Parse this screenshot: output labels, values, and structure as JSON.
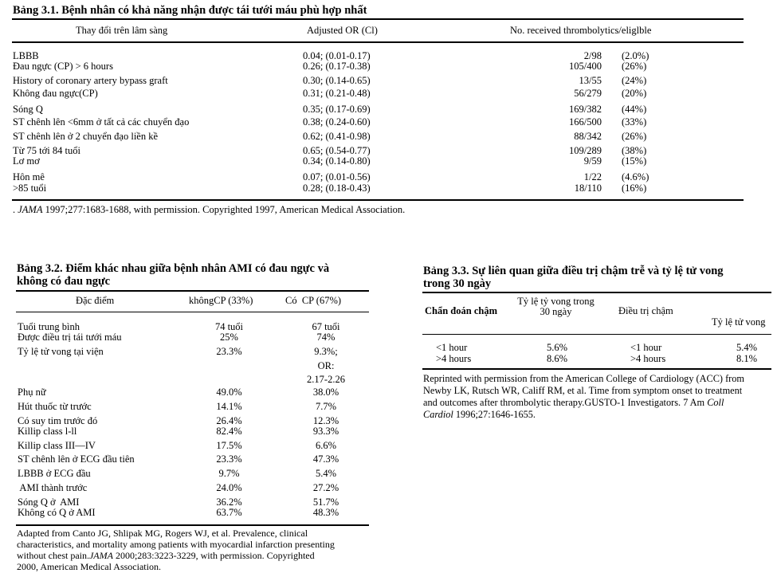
{
  "table1": {
    "title": "Bảng 3.1. Bệnh nhân có khả năng nhận được tái tưới máu phù hợp nhất",
    "headers": [
      "Thay đổi trên lâm sàng",
      "Adjusted OR (Cl)",
      "No. received thrombolytics/eliglble"
    ],
    "rows": [
      {
        "label": "LBBB",
        "or": "0.04; (0.01-0.17)",
        "ratio": "2/98",
        "pct": "(2.0%)"
      },
      {
        "label": "Đau ngực (CP) > 6 hours",
        "or": "0.26; (0.17-0.38)",
        "ratio": "105/400",
        "pct": "(26%)"
      },
      {
        "label": "History of coronary artery bypass graft",
        "or": "0.30; (0.14-0.65)",
        "ratio": "13/55",
        "pct": "(24%)"
      },
      {
        "label": "Không đau ngực(CP)",
        "or": "0.31; (0.21-0.48)",
        "ratio": "56/279",
        "pct": "(20%)"
      },
      {
        "label": "Sóng Q",
        "or": "0.35; (0.17-0.69)",
        "ratio": "169/382",
        "pct": "(44%)"
      },
      {
        "label": "ST chênh lên <6mm ở tất cả các chuyển đạo",
        "or": "0.38; (0.24-0.60)",
        "ratio": "166/500",
        "pct": "(33%)"
      },
      {
        "label": "ST chênh lên ở 2 chuyển đạo liền kề",
        "or": "0.62; (0.41-0.98)",
        "ratio": "88/342",
        "pct": "(26%)"
      },
      {
        "label": "Từ 75 tới 84 tuổi",
        "or": "0.65; (0.54-0.77)",
        "ratio": "109/289",
        "pct": "(38%)"
      },
      {
        "label": "Lơ mơ",
        "or": "0.34; (0.14-0.80)",
        "ratio": "9/59",
        "pct": "(15%)"
      },
      {
        "label": "Hôn mê",
        "or": "0.07; (0.01-0.56)",
        "ratio": "1/22",
        "pct": "(4.6%)"
      },
      {
        "label": ">85 tuổi",
        "or": "0.28; (0.18-0.43)",
        "ratio": "18/110",
        "pct": "(16%)"
      }
    ],
    "footnote_prefix": ". ",
    "footnote_journal": "JAMA",
    "footnote_rest": " 1997;277:1683-1688, with permission. Copyrighted 1997, American Medical Association."
  },
  "table2": {
    "title_line1": "Bảng 3.2. Điểm khác nhau giữa bệnh nhân AMI có đau ngực và",
    "title_line2": "không có đau ngực",
    "headers": [
      "Đặc điểm",
      "khôngCP (33%)",
      "Có  CP (67%)"
    ],
    "rows": [
      {
        "label": "Tuổi trung bình",
        "a": "74 tuổi",
        "b": "67 tuổi"
      },
      {
        "label": "Được điều trị tái tưới máu",
        "a": "25%",
        "b": "74%"
      },
      {
        "label": "Tỷ lệ tử vong tại viện",
        "a": "23.3%",
        "b": "9.3%;"
      },
      {
        "label": "",
        "a": "",
        "b": "OR:"
      },
      {
        "label": "",
        "a": "",
        "b": "2.17-2.26"
      },
      {
        "label": "Phụ nữ",
        "a": "49.0%",
        "b": "38.0%"
      },
      {
        "label": "Hút thuốc từ trước",
        "a": "14.1%",
        "b": "7.7%"
      },
      {
        "label": "Có suy tim trước đó",
        "a": "26.4%",
        "b": "12.3%"
      },
      {
        "label": "Killip class l-ll",
        "a": "82.4%",
        "b": "93.3%"
      },
      {
        "label": "Killip class III—IV",
        "a": "17.5%",
        "b": "6.6%"
      },
      {
        "label": "ST chênh lên ở ECG đầu tiên",
        "a": "23.3%",
        "b": "47.3%"
      },
      {
        "label": "LBBB ở ECG đầu",
        "a": "9.7%",
        "b": "5.4%"
      },
      {
        "label": " AMI thành trước",
        "a": "24.0%",
        "b": "27.2%"
      },
      {
        "label": "Sóng Q ở  AMI",
        "a": "36.2%",
        "b": "51.7%"
      },
      {
        "label": "Không có Q ở AMI",
        "a": "63.7%",
        "b": "48.3%"
      }
    ],
    "footnote_line1": "Adapted from Canto JG, Shlipak MG, Rogers WJ, et al. Prevalence, clinical",
    "footnote_line2": "characteristics, and mortality among patients with myocardial infarction presenting",
    "footnote_line3a": "without chest pain.",
    "footnote_line3_journal": "JAMA",
    "footnote_line3b": " 2000;283:3223-3229, with permission. Copyrighted",
    "footnote_line4": "2000, American Medical Association."
  },
  "table3": {
    "title_line1": "Bảng 3.3. Sự liên quan giữa điều trị chậm trễ và tỷ lệ tử vong",
    "title_line2": "trong 30 ngày",
    "header_col1": "Chẩn đoán chậm",
    "header_col2_line1": "Tỷ lệ tỷ vong trong",
    "header_col2_line2": "30 ngày",
    "header_col3": "Điều trị chậm",
    "header_col4": "Tỷ lệ tử vong",
    "rows": [
      {
        "c1": "<1 hour",
        "c2": "5.6%",
        "c3": "<1 hour",
        "c4": "5.4%"
      },
      {
        "c1": ">4 hours",
        "c2": "8.6%",
        "c3": ">4 hours",
        "c4": "8.1%"
      }
    ],
    "footnote_line1": "Reprinted with permission from the American College of Cardiology (ACC) from",
    "footnote_line2": "Newby LK, Rutsch WR, Califf RM, et al. Time from symptom onset to treatment",
    "footnote_line3": "and outcomes after thrombolytic therapy.GUSTO-1 Investigators. 7 Am",
    "footnote_line3_journal": "Coll",
    "footnote_line4_journal": "Cardiol",
    "footnote_line4": " 1996;27:1646-1655."
  }
}
